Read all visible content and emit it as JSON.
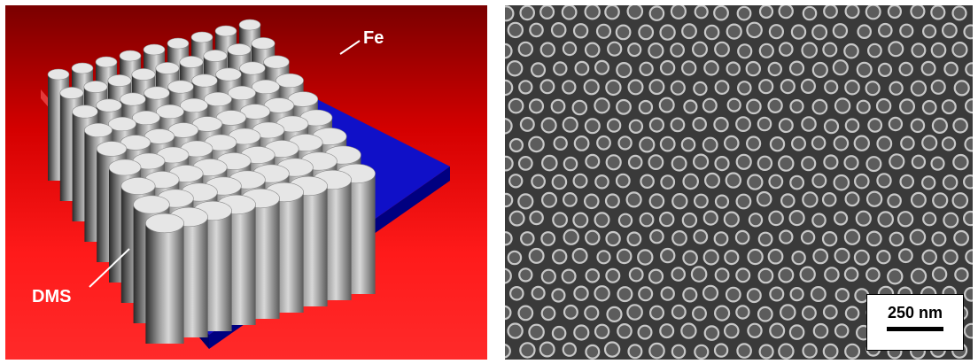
{
  "left_panel": {
    "label_top": "Fe",
    "label_bottom": "DMS",
    "colors": {
      "background": "#e00000",
      "substrate": "#1010c8",
      "pillars": "#b8b8b8"
    }
  },
  "right_panel": {
    "scale_bar_label": "250 nm",
    "colors": {
      "background": "#3a3a3a",
      "dots": "#c8c8c8"
    }
  }
}
